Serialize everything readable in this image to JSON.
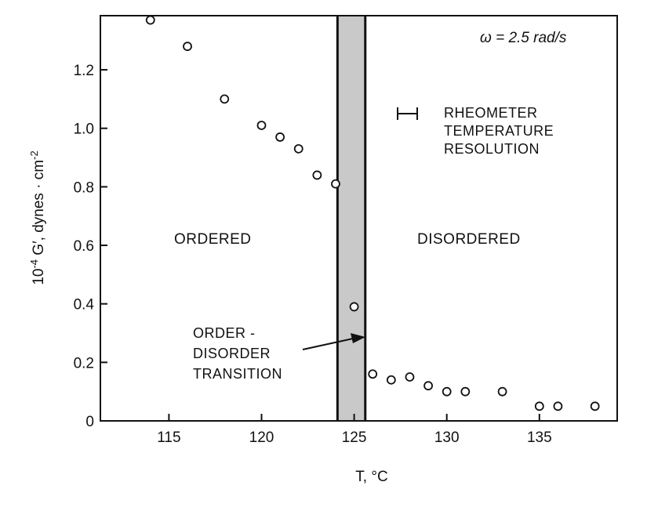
{
  "chart_data": {
    "type": "scatter",
    "title": "",
    "xlabel": "T, °C",
    "ylabel_parts": {
      "pre": "10",
      "pre_sup": "-4",
      "mid": " G′, dynes · cm",
      "post_sup": "-2"
    },
    "xlim": [
      111.3,
      139.2
    ],
    "ylim": [
      0,
      1.385
    ],
    "x_ticks": [
      115,
      120,
      125,
      130,
      135
    ],
    "y_ticks": [
      0,
      0.2,
      0.4,
      0.6,
      0.8,
      1.0,
      1.2
    ],
    "y_tick_labels": [
      "0",
      "0.2",
      "0.4",
      "0.6",
      "0.8",
      "1.0",
      "1.2"
    ],
    "grid": false,
    "transition_band": {
      "x_min": 124.1,
      "x_max": 125.6
    },
    "series": [
      {
        "marker": "open-circle",
        "points": [
          {
            "x": 114,
            "y": 1.37
          },
          {
            "x": 116,
            "y": 1.28
          },
          {
            "x": 118,
            "y": 1.1
          },
          {
            "x": 120,
            "y": 1.01
          },
          {
            "x": 121,
            "y": 0.97
          },
          {
            "x": 122,
            "y": 0.93
          },
          {
            "x": 123,
            "y": 0.84
          },
          {
            "x": 124,
            "y": 0.81
          },
          {
            "x": 125,
            "y": 0.39
          },
          {
            "x": 126,
            "y": 0.16
          },
          {
            "x": 127,
            "y": 0.14
          },
          {
            "x": 128,
            "y": 0.15
          },
          {
            "x": 129,
            "y": 0.12
          },
          {
            "x": 130,
            "y": 0.1
          },
          {
            "x": 131,
            "y": 0.1
          },
          {
            "x": 133,
            "y": 0.1
          },
          {
            "x": 135,
            "y": 0.05
          },
          {
            "x": 136,
            "y": 0.05
          },
          {
            "x": 138,
            "y": 0.05
          }
        ]
      }
    ],
    "annotations": {
      "omega": "ω = 2.5 rad/s",
      "ordered": "ORDERED",
      "disordered": "DISORDERED",
      "transition_lines": [
        "ORDER -",
        "DISORDER",
        "TRANSITION"
      ],
      "resolution_lines": [
        "RHEOMETER",
        "TEMPERATURE",
        "RESOLUTION"
      ]
    }
  }
}
